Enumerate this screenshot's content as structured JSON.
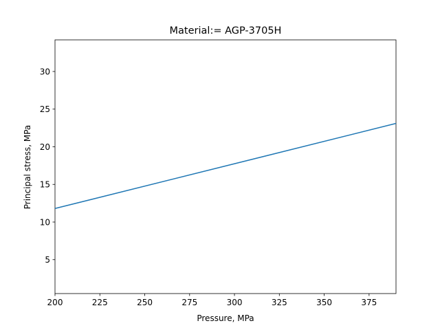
{
  "chart_data": {
    "type": "line",
    "title": "Material:=  AGP-3705H",
    "xlabel": "Pressure, MPa",
    "ylabel": "Principal stress, MPa",
    "xlim": [
      200,
      390
    ],
    "ylim": [
      0.5,
      34.2
    ],
    "xticks": [
      "200",
      "225",
      "250",
      "275",
      "300",
      "325",
      "350",
      "375"
    ],
    "yticks": [
      "5",
      "10",
      "15",
      "20",
      "25",
      "30"
    ],
    "grid": false,
    "legend": "none",
    "series": [
      {
        "color": "#1f77b4",
        "x": [
          200,
          390
        ],
        "y": [
          11.8,
          23.1
        ]
      }
    ]
  }
}
